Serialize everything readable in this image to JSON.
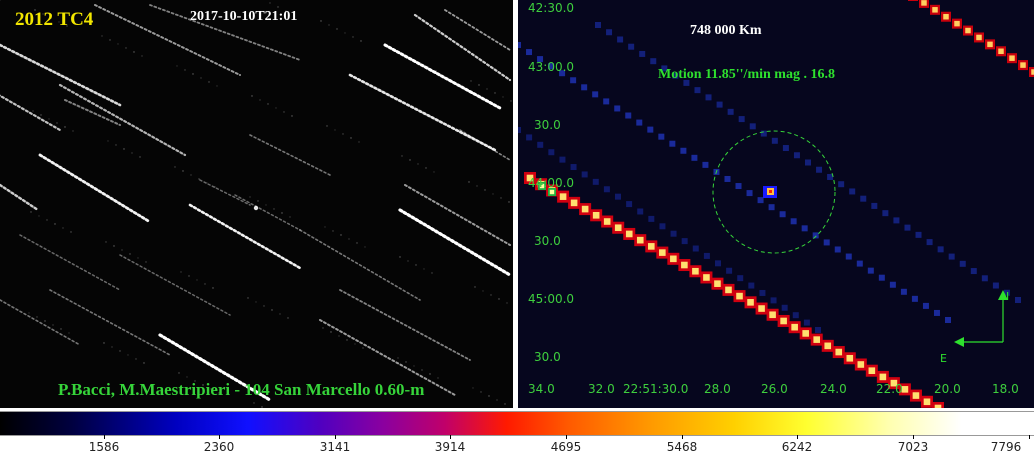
{
  "left_panel": {
    "object_name": "2012 TC4",
    "timestamp": "2017-10-10T21:01",
    "observer_credit": "P.Bacci, M.Maestripieri - 104 San Marcello 0.60-m"
  },
  "right_panel": {
    "distance": "748 000 Km",
    "motion_info": "Motion 11.85''/min mag . 16.8",
    "dec_labels": [
      "42:30.0",
      "43:00.0",
      "30.0",
      "44:00.0",
      "30.0",
      "45:00.0",
      "30.0"
    ],
    "ra_labels": [
      "34.0",
      "32.0",
      "22:51:30.0",
      "28.0",
      "26.0",
      "24.0",
      "22.0",
      "20.0",
      "18.0"
    ],
    "compass": {
      "north": "N",
      "east": "E"
    }
  },
  "colorbar": {
    "tick_labels": [
      "1586",
      "2360",
      "3141",
      "3914",
      "4695",
      "5468",
      "6242",
      "7023",
      "7796"
    ]
  },
  "colors": {
    "title_yellow": "#f2e600",
    "label_green": "#3ecf3e"
  }
}
